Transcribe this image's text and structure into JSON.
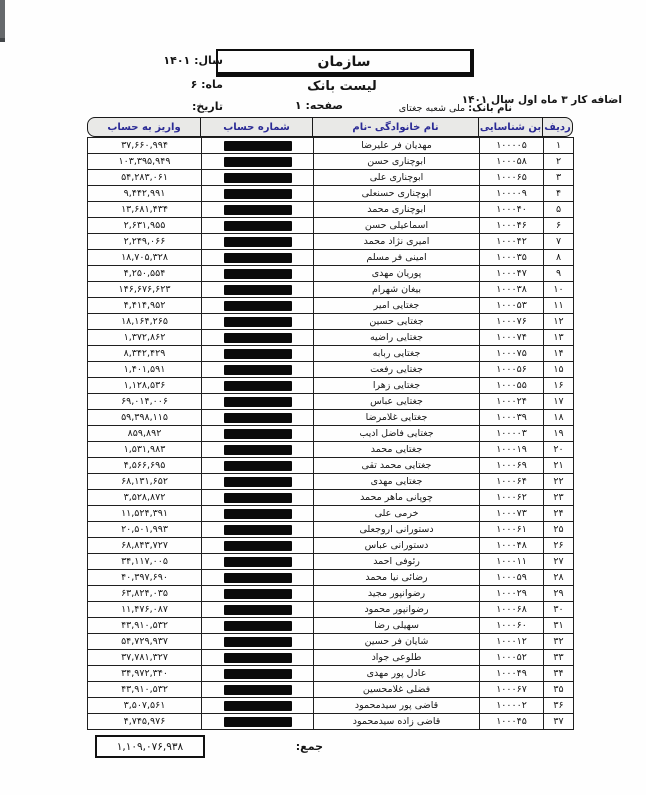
{
  "header": {
    "org_title": "سازمان",
    "list_title": "لیست بانک",
    "overtime_title": "اضافه کار ۳ ماه اول سال ۱۴۰۱",
    "bank_label": "نام بانک:",
    "bank_value": "ملی شعبه جغتای",
    "year_label": "سال:",
    "year_value": "۱۴۰۱",
    "month_label": "ماه:",
    "month_value": "۶",
    "page_label": "صفحه:",
    "page_value": "۱",
    "date_label": "تاریخ:",
    "date_value": ""
  },
  "table": {
    "headers": {
      "row": "ردیف",
      "id": "بن شناسایی",
      "name": "نام خانوادگی  -نام",
      "account": "شماره حساب",
      "deposit": "واریز به حساب"
    },
    "rows": [
      {
        "no": "۱",
        "id": "۱۰۰۰۰۵",
        "name": "مهدیان فر  علیرضا",
        "amount": "۳۷,۶۶۰,۹۹۴"
      },
      {
        "no": "۲",
        "id": "۱۰۰۰۵۸",
        "name": "ابوچناری  حسن",
        "amount": "۱۰۳,۳۹۵,۹۴۹"
      },
      {
        "no": "۳",
        "id": "۱۰۰۰۶۵",
        "name": "ابوچناری  علی",
        "amount": "۵۴,۲۸۳,۰۶۱"
      },
      {
        "no": "۴",
        "id": "۱۰۰۰۰۹",
        "name": "ابوچناری  حسنعلی",
        "amount": "۹,۴۴۲,۹۹۱"
      },
      {
        "no": "۵",
        "id": "۱۰۰۰۴۰",
        "name": "ابوچناری  محمد",
        "amount": "۱۳,۶۸۱,۴۳۴"
      },
      {
        "no": "۶",
        "id": "۱۰۰۰۴۶",
        "name": "اسماعیلی  حسن",
        "amount": "۲,۶۳۱,۹۵۵"
      },
      {
        "no": "۷",
        "id": "۱۰۰۰۴۲",
        "name": "امیری نژاد  محمد",
        "amount": "۲,۲۴۹,۰۶۶"
      },
      {
        "no": "۸",
        "id": "۱۰۰۰۳۵",
        "name": "امینی فر  مسلم",
        "amount": "۱۸,۷۰۵,۳۲۸"
      },
      {
        "no": "۹",
        "id": "۱۰۰۰۴۷",
        "name": "پوریان  مهدی",
        "amount": "۴,۲۵۰,۵۵۴"
      },
      {
        "no": "۱۰",
        "id": "۱۰۰۰۳۸",
        "name": "بیغان  شهرام",
        "amount": "۱۴۶,۶۷۶,۶۲۳"
      },
      {
        "no": "۱۱",
        "id": "۱۰۰۰۵۳",
        "name": "جغتایی  امیر",
        "amount": "۴,۴۱۴,۹۵۲"
      },
      {
        "no": "۱۲",
        "id": "۱۰۰۰۷۶",
        "name": "جغتایی  حسین",
        "amount": "۱۸,۱۶۴,۲۶۵"
      },
      {
        "no": "۱۳",
        "id": "۱۰۰۰۷۴",
        "name": "جغتایی  راضیه",
        "amount": "۱,۳۷۲,۸۶۲"
      },
      {
        "no": "۱۴",
        "id": "۱۰۰۰۷۵",
        "name": "جغتایی  ربابه",
        "amount": "۸,۳۴۲,۴۲۹"
      },
      {
        "no": "۱۵",
        "id": "۱۰۰۰۵۶",
        "name": "جغتایی  رفعت",
        "amount": "۱,۴۰۱,۵۹۱"
      },
      {
        "no": "۱۶",
        "id": "۱۰۰۰۵۵",
        "name": "جغتایی  زهرا",
        "amount": "۱,۱۲۸,۵۳۶"
      },
      {
        "no": "۱۷",
        "id": "۱۰۰۰۲۴",
        "name": "جغتایی  عباس",
        "amount": "۶۹,۰۱۴,۰۰۶"
      },
      {
        "no": "۱۸",
        "id": "۱۰۰۰۳۹",
        "name": "جغتایی  غلامرضا",
        "amount": "۵۹,۳۹۸,۱۱۵"
      },
      {
        "no": "۱۹",
        "id": "۱۰۰۰۰۳",
        "name": "جغتایی  فاضل ادیب",
        "amount": "۸۵۹,۸۹۲"
      },
      {
        "no": "۲۰",
        "id": "۱۰۰۰۱۹",
        "name": "جغتایی  محمد",
        "amount": "۱,۵۳۱,۹۸۳"
      },
      {
        "no": "۲۱",
        "id": "۱۰۰۰۶۹",
        "name": "جغتایی  محمد تقی",
        "amount": "۴,۵۶۶,۶۹۵"
      },
      {
        "no": "۲۲",
        "id": "۱۰۰۰۶۴",
        "name": "جغتایی  مهدی",
        "amount": "۶۸,۱۳۱,۶۵۲"
      },
      {
        "no": "۲۳",
        "id": "۱۰۰۰۶۲",
        "name": "چوپانی ماهر  محمد",
        "amount": "۳,۵۲۸,۸۷۲"
      },
      {
        "no": "۲۴",
        "id": "۱۰۰۰۷۳",
        "name": "خرمی  علی",
        "amount": "۱۱,۵۲۴,۳۹۱"
      },
      {
        "no": "۲۵",
        "id": "۱۰۰۰۶۱",
        "name": "دستورانی  اروجعلی",
        "amount": "۲۰,۵۰۱,۹۹۳"
      },
      {
        "no": "۲۶",
        "id": "۱۰۰۰۴۸",
        "name": "دستورانی  عباس",
        "amount": "۶۸,۸۴۳,۷۲۷"
      },
      {
        "no": "۲۷",
        "id": "۱۰۰۰۱۱",
        "name": "رئوفی  احمد",
        "amount": "۳۴,۱۱۷,۰۰۵"
      },
      {
        "no": "۲۸",
        "id": "۱۰۰۰۵۹",
        "name": "رضائی نیا  محمد",
        "amount": "۴۰,۳۹۷,۶۹۰"
      },
      {
        "no": "۲۹",
        "id": "۱۰۰۰۲۹",
        "name": "رضوانپور  مجید",
        "amount": "۶۳,۸۲۴,۰۳۵"
      },
      {
        "no": "۳۰",
        "id": "۱۰۰۰۶۸",
        "name": "رضوانپور  محمود",
        "amount": "۱۱,۴۷۶,۰۸۷"
      },
      {
        "no": "۳۱",
        "id": "۱۰۰۰۶۰",
        "name": "سهیلی  رضا",
        "amount": "۴۳,۹۱۰,۵۳۲"
      },
      {
        "no": "۳۲",
        "id": "۱۰۰۰۱۲",
        "name": "شایان فر  حسین",
        "amount": "۵۴,۷۲۹,۹۳۷"
      },
      {
        "no": "۳۳",
        "id": "۱۰۰۰۵۲",
        "name": "طلوعی  جواد",
        "amount": "۳۷,۷۸۱,۳۲۷"
      },
      {
        "no": "۳۴",
        "id": "۱۰۰۰۴۹",
        "name": "عادل پور  مهدی",
        "amount": "۳۴,۹۷۲,۳۴۰"
      },
      {
        "no": "۳۵",
        "id": "۱۰۰۰۶۷",
        "name": "فضلی  غلامحسین",
        "amount": "۴۳,۹۱۰,۵۳۲"
      },
      {
        "no": "۳۶",
        "id": "۱۰۰۰۰۲",
        "name": "قاضی پور  سیدمحمود",
        "amount": "۳,۵۰۷,۵۶۱"
      },
      {
        "no": "۳۷",
        "id": "۱۰۰۰۴۵",
        "name": "قاضی زاده  سیدمحمود",
        "amount": "۴,۷۴۵,۹۷۶"
      }
    ]
  },
  "footer": {
    "total_label": "جمع:",
    "total_value": "۱,۱۰۹,۰۷۶,۹۳۸"
  },
  "colors": {
    "header_text": "#2b2b96",
    "header_bg": "#e9e9e7",
    "border": "#1a1a1a",
    "redaction": "#0a0a0a"
  }
}
